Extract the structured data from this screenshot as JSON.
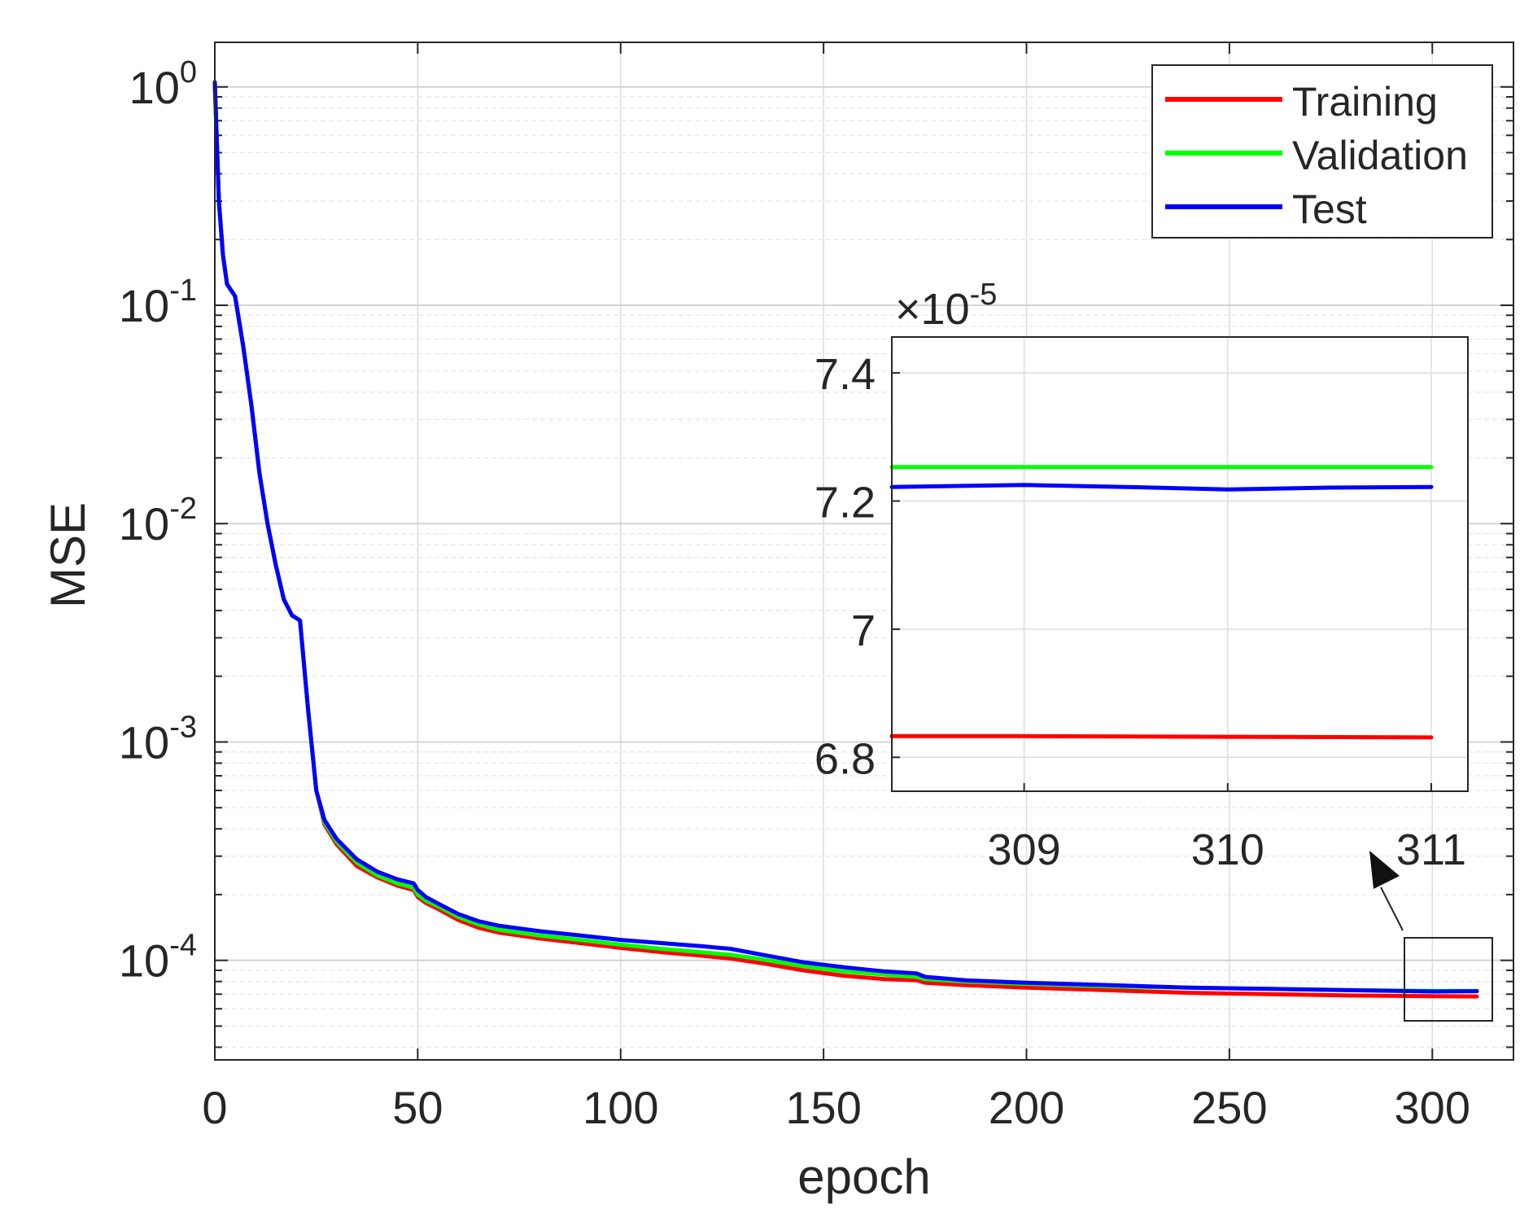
{
  "chart_data": [
    {
      "type": "line",
      "role": "main",
      "xlabel": "epoch",
      "ylabel": "MSE",
      "yscale": "log",
      "xlim": [
        0,
        320
      ],
      "ylim": [
        3.5e-05,
        1.6
      ],
      "xticks": [
        0,
        50,
        100,
        150,
        200,
        250,
        300
      ],
      "ytick_exponents": [
        0,
        -1,
        -2,
        -3,
        -4
      ],
      "ytick_base": "10",
      "grid": true,
      "legend_position": "top-right",
      "legend": [
        "Training",
        "Validation",
        "Test"
      ],
      "series": [
        {
          "name": "Training",
          "color": "#ff0000",
          "x": [
            0,
            1,
            2,
            3,
            5,
            7,
            9,
            11,
            13,
            15,
            17,
            19,
            21,
            23,
            25,
            27,
            30,
            35,
            40,
            45,
            49,
            50,
            52,
            55,
            60,
            65,
            70,
            80,
            90,
            100,
            110,
            120,
            127,
            135,
            145,
            155,
            165,
            173,
            175,
            185,
            200,
            220,
            240,
            260,
            280,
            300,
            311
          ],
          "y": [
            1.05,
            0.3,
            0.17,
            0.125,
            0.11,
            0.065,
            0.035,
            0.017,
            0.01,
            0.0065,
            0.0045,
            0.0038,
            0.0036,
            0.0014,
            0.0006,
            0.00042,
            0.00034,
            0.00027,
            0.00024,
            0.00022,
            0.00021,
            0.000195,
            0.000183,
            0.000172,
            0.000153,
            0.000141,
            0.000134,
            0.000126,
            0.00012,
            0.000114,
            0.000109,
            0.000105,
            0.000102,
            9.7e-05,
            9e-05,
            8.5e-05,
            8.2e-05,
            8.1e-05,
            7.9e-05,
            7.7e-05,
            7.5e-05,
            7.3e-05,
            7.1e-05,
            7e-05,
            6.9e-05,
            6.85e-05,
            6.83e-05
          ]
        },
        {
          "name": "Validation",
          "color": "#00ff00",
          "x": [
            0,
            1,
            2,
            3,
            5,
            7,
            9,
            11,
            13,
            15,
            17,
            19,
            21,
            23,
            25,
            27,
            30,
            35,
            40,
            45,
            49,
            50,
            52,
            55,
            60,
            65,
            70,
            80,
            90,
            100,
            110,
            120,
            127,
            135,
            145,
            155,
            165,
            173,
            175,
            185,
            200,
            220,
            240,
            260,
            280,
            300,
            311
          ],
          "y": [
            1.05,
            0.3,
            0.17,
            0.125,
            0.11,
            0.065,
            0.035,
            0.017,
            0.01,
            0.0065,
            0.0045,
            0.0038,
            0.0036,
            0.0014,
            0.0006,
            0.00043,
            0.00035,
            0.00028,
            0.000245,
            0.000225,
            0.000215,
            0.0002,
            0.000188,
            0.000177,
            0.000158,
            0.000146,
            0.000138,
            0.00013,
            0.000124,
            0.000118,
            0.000113,
            0.000109,
            0.000106,
            0.000101,
            9.4e-05,
            8.9e-05,
            8.6e-05,
            8.4e-05,
            8.2e-05,
            8e-05,
            7.8e-05,
            7.6e-05,
            7.5e-05,
            7.4e-05,
            7.3e-05,
            7.25e-05,
            7.24e-05
          ]
        },
        {
          "name": "Test",
          "color": "#0000ff",
          "x": [
            0,
            1,
            2,
            3,
            5,
            7,
            9,
            11,
            13,
            15,
            17,
            19,
            21,
            23,
            25,
            27,
            30,
            35,
            40,
            45,
            49,
            50,
            52,
            55,
            60,
            65,
            70,
            80,
            90,
            100,
            110,
            120,
            127,
            135,
            145,
            155,
            165,
            173,
            175,
            185,
            200,
            220,
            240,
            260,
            280,
            300,
            311
          ],
          "y": [
            1.05,
            0.3,
            0.17,
            0.125,
            0.11,
            0.065,
            0.035,
            0.017,
            0.01,
            0.0065,
            0.0045,
            0.0038,
            0.0036,
            0.0014,
            0.0006,
            0.00044,
            0.00036,
            0.00029,
            0.000255,
            0.000235,
            0.000225,
            0.00021,
            0.000195,
            0.000182,
            0.000163,
            0.000151,
            0.000144,
            0.000136,
            0.00013,
            0.000124,
            0.00012,
            0.000116,
            0.000113,
            0.000106,
            9.8e-05,
            9.3e-05,
            8.9e-05,
            8.7e-05,
            8.4e-05,
            8.1e-05,
            7.9e-05,
            7.7e-05,
            7.5e-05,
            7.4e-05,
            7.3e-05,
            7.2e-05,
            7.22e-05
          ]
        }
      ]
    },
    {
      "type": "line",
      "role": "inset",
      "xlim": [
        308.35,
        311.18
      ],
      "ylim": [
        6.747,
        7.456
      ],
      "xticks": [
        309,
        310,
        311
      ],
      "yticks": [
        6.8,
        7,
        7.2,
        7.4
      ],
      "ytick_labels": [
        "6.8",
        "7",
        "7.2",
        "7.4"
      ],
      "multiplier_base": "×10",
      "multiplier_exponent": "-5",
      "grid": true,
      "series": [
        {
          "name": "Training",
          "color": "#ff0000",
          "x": [
            308.35,
            309,
            310,
            311
          ],
          "y": [
            6.833,
            6.833,
            6.832,
            6.831
          ]
        },
        {
          "name": "Validation",
          "color": "#00ff00",
          "x": [
            308.35,
            309,
            310,
            311
          ],
          "y": [
            7.253,
            7.253,
            7.253,
            7.253
          ]
        },
        {
          "name": "Test",
          "color": "#0000ff",
          "x": [
            308.35,
            309,
            309.5,
            310,
            310.5,
            311
          ],
          "y": [
            7.222,
            7.225,
            7.222,
            7.218,
            7.221,
            7.222
          ]
        }
      ]
    }
  ]
}
